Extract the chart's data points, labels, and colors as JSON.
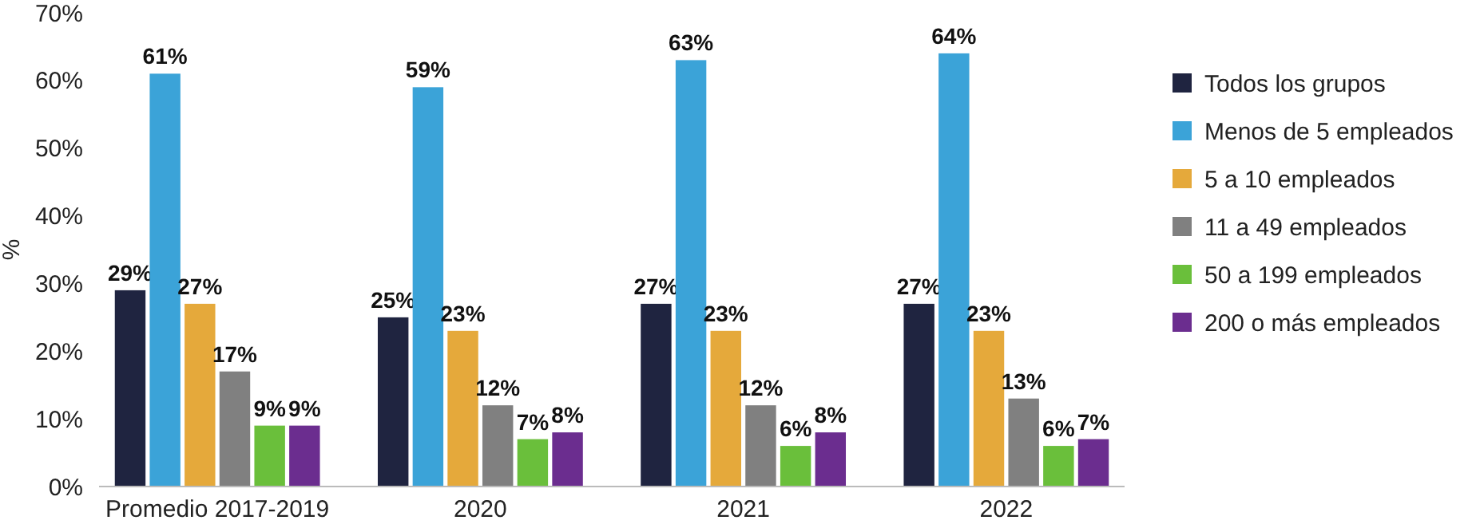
{
  "chart_data": {
    "type": "bar",
    "ylabel": "%",
    "categories": [
      "Promedio 2017-2019",
      "2020",
      "2021",
      "2022"
    ],
    "ylim": [
      0,
      70
    ],
    "yticks": [
      {
        "value": 0,
        "label": "0%"
      },
      {
        "value": 10,
        "label": "10%"
      },
      {
        "value": 20,
        "label": "20%"
      },
      {
        "value": 30,
        "label": "30%"
      },
      {
        "value": 40,
        "label": "40%"
      },
      {
        "value": 50,
        "label": "50%"
      },
      {
        "value": 60,
        "label": "60%"
      },
      {
        "value": 70,
        "label": "70%"
      }
    ],
    "grid": false,
    "legend": "right",
    "series": [
      {
        "name": "Todos los grupos",
        "color": "#1f2440",
        "values": [
          29,
          25,
          27,
          27
        ],
        "value_labels": [
          "29%",
          "25%",
          "27%",
          "27%"
        ]
      },
      {
        "name": "Menos de 5 empleados",
        "color": "#3ba3d8",
        "values": [
          61,
          59,
          63,
          64
        ],
        "value_labels": [
          "61%",
          "59%",
          "63%",
          "64%"
        ]
      },
      {
        "name": "5 a 10 empleados",
        "color": "#e5a93b",
        "values": [
          27,
          23,
          23,
          23
        ],
        "value_labels": [
          "27%",
          "23%",
          "23%",
          "23%"
        ]
      },
      {
        "name": "11 a 49 empleados",
        "color": "#808080",
        "values": [
          17,
          12,
          12,
          13
        ],
        "value_labels": [
          "17%",
          "12%",
          "12%",
          "13%"
        ]
      },
      {
        "name": "50 a 199 empleados",
        "color": "#6abf3b",
        "values": [
          9,
          7,
          6,
          6
        ],
        "value_labels": [
          "9%",
          "7%",
          "6%",
          "6%"
        ]
      },
      {
        "name": "200 o más empleados",
        "color": "#6b2d8f",
        "values": [
          9,
          8,
          8,
          7
        ],
        "value_labels": [
          "9%",
          "8%",
          "8%",
          "7%"
        ]
      }
    ]
  }
}
